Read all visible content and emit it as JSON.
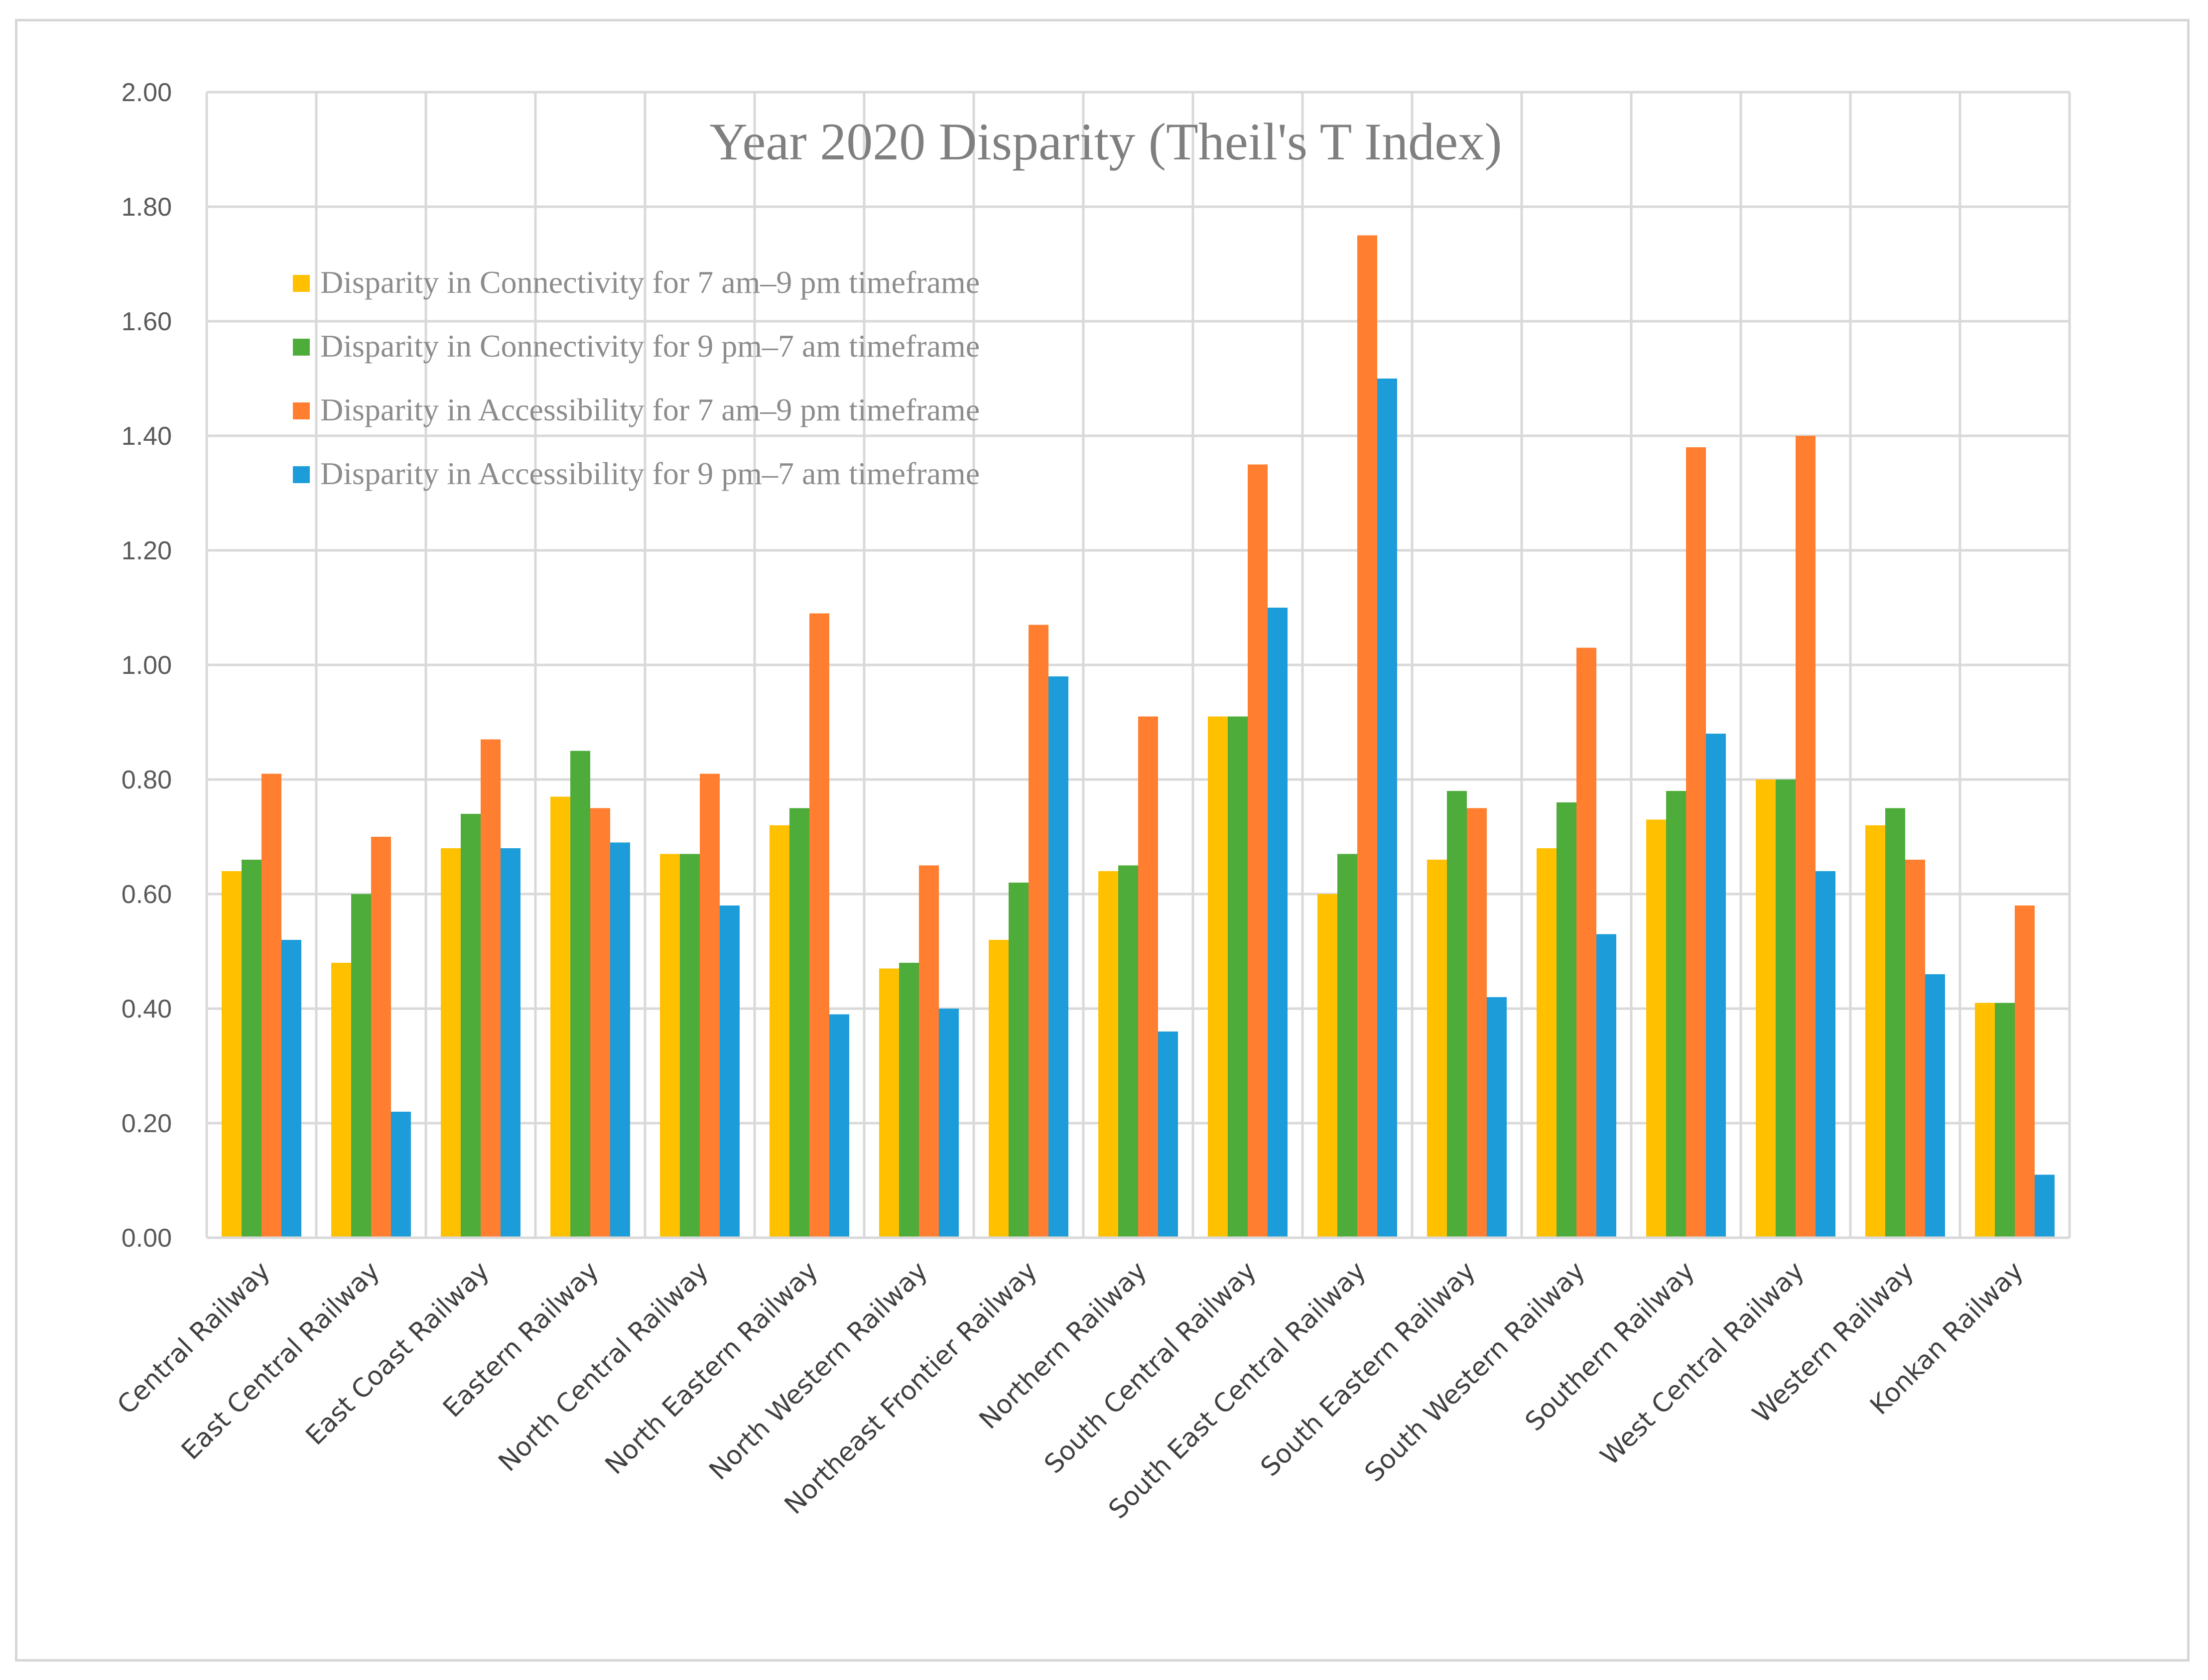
{
  "chart_data": {
    "type": "bar",
    "title": "Year 2020 Disparity (Theil's T Index)",
    "xlabel": "",
    "ylabel": "",
    "ylim": [
      0,
      2
    ],
    "y_ticks": [
      "0.00",
      "0.20",
      "0.40",
      "0.60",
      "0.80",
      "1.00",
      "1.20",
      "1.40",
      "1.60",
      "1.80",
      "2.00"
    ],
    "grid": true,
    "legend_position": "top-left",
    "categories": [
      "Central Railway",
      "East Central Railway",
      "East Coast Railway",
      "Eastern Railway",
      "North Central Railway",
      "North Eastern Railway",
      "North Western Railway",
      "Northeast Frontier Railway",
      "Northern Railway",
      "South Central Railway",
      "South East Central Railway",
      "South Eastern Railway",
      "South Western Railway",
      "Southern Railway",
      "West Central Railway",
      "Western Railway",
      "Konkan Railway"
    ],
    "series": [
      {
        "name": "Disparity in Connectivity for 7 am–9 pm timeframe",
        "color": "#FFC000",
        "values": [
          0.64,
          0.48,
          0.68,
          0.77,
          0.67,
          0.72,
          0.47,
          0.52,
          0.64,
          0.91,
          0.6,
          0.66,
          0.68,
          0.73,
          0.8,
          0.72,
          0.41
        ]
      },
      {
        "name": "Disparity in Connectivity for 9 pm–7 am timeframe",
        "color": "#4EAC3A",
        "values": [
          0.66,
          0.6,
          0.74,
          0.85,
          0.67,
          0.75,
          0.48,
          0.62,
          0.65,
          0.91,
          0.67,
          0.78,
          0.76,
          0.78,
          0.8,
          0.75,
          0.41
        ]
      },
      {
        "name": "Disparity in Accessibility for 7 am–9 pm timeframe",
        "color": "#FF7E2F",
        "values": [
          0.81,
          0.7,
          0.87,
          0.75,
          0.81,
          1.09,
          0.65,
          1.07,
          0.91,
          1.35,
          1.75,
          0.75,
          1.03,
          1.38,
          1.4,
          0.66,
          0.58
        ]
      },
      {
        "name": "Disparity in Accessibility for 9 pm–7 am timeframe",
        "color": "#1C9CD8",
        "values": [
          0.52,
          0.22,
          0.68,
          0.69,
          0.58,
          0.39,
          0.4,
          0.98,
          0.36,
          1.1,
          1.5,
          0.42,
          0.53,
          0.88,
          0.64,
          0.46,
          0.11
        ]
      }
    ]
  }
}
